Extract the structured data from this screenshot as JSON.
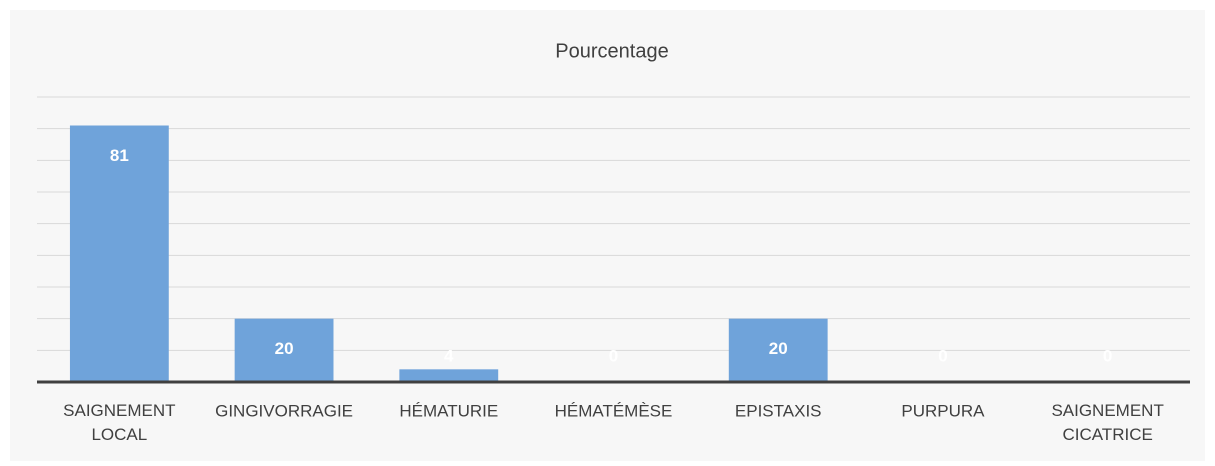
{
  "chart_data": {
    "type": "bar",
    "title": "Pourcentage",
    "categories": [
      "SAIGNEMENT LOCAL",
      "GINGIVORRAGIE",
      "HÉMATURIE",
      "HÉMATÉMÈSE",
      "EPISTAXIS",
      "PURPURA",
      "SAIGNEMENT CICATRICE"
    ],
    "values": [
      81,
      20,
      4,
      0,
      20,
      0,
      0
    ],
    "color": "#6fa3da",
    "ylim": [
      0,
      90
    ],
    "yticks": [
      0,
      10,
      20,
      30,
      40,
      50,
      60,
      70,
      80,
      90
    ],
    "grid": true
  }
}
